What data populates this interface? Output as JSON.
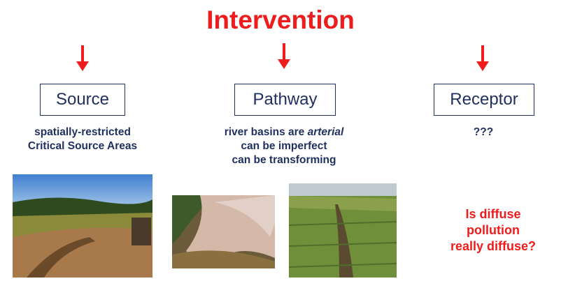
{
  "title": "Intervention",
  "columns": [
    {
      "label": "Source",
      "lines": [
        "spatially-restricted",
        "Critical Source Areas"
      ]
    },
    {
      "label": "Pathway",
      "lines": [
        [
          "river basins are",
          "arterial"
        ],
        "can be imperfect",
        "can be transforming"
      ]
    },
    {
      "label": "Receptor",
      "lines": [
        "???"
      ]
    }
  ],
  "question": [
    "Is diffuse",
    "pollution",
    "really diffuse?"
  ]
}
